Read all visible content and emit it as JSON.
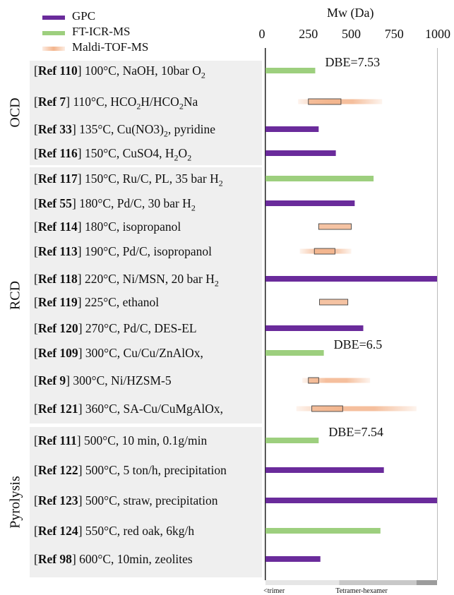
{
  "chart_data": {
    "type": "bar",
    "orientation": "horizontal",
    "axis_title": "Mw (Da)",
    "xlim": [
      0,
      1000
    ],
    "ticks": [
      "0",
      "250",
      "500",
      "750",
      "1000"
    ],
    "tick_values": [
      0,
      250,
      500,
      750,
      1000
    ],
    "legend": [
      {
        "name": "GPC",
        "color": "#6a2b9b",
        "kind": "bar"
      },
      {
        "name": "FT-ICR-MS",
        "color": "#9dcf7e",
        "kind": "bar"
      },
      {
        "name": "Maldi-TOF-MS",
        "color": "#f3b48c",
        "kind": "range"
      }
    ],
    "groups": [
      {
        "name": "OCD",
        "rows": [
          0,
          1,
          2,
          3
        ]
      },
      {
        "name": "RCD",
        "rows": [
          4,
          5,
          6,
          7,
          8,
          9,
          10,
          11,
          12,
          13
        ]
      },
      {
        "name": "Pyrolysis",
        "rows": [
          14,
          15,
          16,
          17,
          18
        ]
      }
    ],
    "rows": [
      {
        "ref": "Ref 110",
        "cond": "100°C, NaOH, 10bar O",
        "sub": "2",
        "tail": "",
        "method": "FT-ICR-MS",
        "value": 290,
        "annotation": "DBE=7.53"
      },
      {
        "ref": "Ref 7",
        "cond": "110°C, HCO",
        "sub": "2",
        "tail": "H/HCO",
        "sub2": "2",
        "tail2": "Na",
        "method": "Maldi-TOF-MS",
        "range": [
          190,
          680
        ],
        "box": [
          250,
          440
        ]
      },
      {
        "ref": "Ref 33",
        "cond": "135°C, Cu(NO3)",
        "sub": "2",
        "tail": ", pyridine",
        "method": "GPC",
        "value": 310
      },
      {
        "ref": "Ref 116",
        "cond": "150°C, CuSO4, H",
        "sub": "2",
        "tail": "O",
        "sub2": "2",
        "tail2": "",
        "method": "GPC",
        "value": 410
      },
      {
        "ref": "Ref 117",
        "cond": "150°C, Ru/C, PL, 35 bar H",
        "sub": "2",
        "tail": "",
        "method": "FT-ICR-MS",
        "value": 630
      },
      {
        "ref": "Ref 55",
        "cond": "  180°C, Pd/C, 30 bar H",
        "sub": "2",
        "tail": "",
        "method": "GPC",
        "value": 520
      },
      {
        "ref": "Ref 114",
        "cond": "180°C, isopropanol",
        "sub": "",
        "tail": "",
        "method": "Maldi-TOF-MS",
        "box": [
          310,
          500
        ]
      },
      {
        "ref": "Ref 113",
        "cond": "190°C, Pd/C, isopropanol",
        "sub": "",
        "tail": "",
        "method": "Maldi-TOF-MS",
        "range": [
          200,
          500
        ],
        "box": [
          285,
          405
        ]
      },
      {
        "ref": "Ref 118",
        "cond": "220°C, Ni/MSN, 20 bar H",
        "sub": "2",
        "tail": "",
        "method": "GPC",
        "value": 1000
      },
      {
        "ref": "Ref 119",
        "cond": "225°C, ethanol",
        "sub": "",
        "tail": "",
        "method": "Maldi-TOF-MS",
        "box": [
          315,
          480
        ]
      },
      {
        "ref": "Ref 120",
        "cond": "270°C, Pd/C, DES-EL",
        "sub": "",
        "tail": "",
        "method": "GPC",
        "value": 570
      },
      {
        "ref": "Ref 109",
        "cond": "300°C, Cu/Cu/ZnAlOx,",
        "sub": "",
        "tail": "",
        "method": "FT-ICR-MS",
        "value": 340,
        "annotation": "DBE=6.5"
      },
      {
        "ref": "Ref 9",
        "cond": "   300°C, Ni/HZSM-5",
        "sub": "",
        "tail": "",
        "method": "Maldi-TOF-MS",
        "range": [
          215,
          610
        ],
        "box": [
          250,
          310
        ]
      },
      {
        "ref": "Ref 121",
        "cond": "360°C, SA-Cu/CuMgAlOx,",
        "sub": "",
        "tail": "",
        "method": "Maldi-TOF-MS",
        "range": [
          180,
          880
        ],
        "box": [
          270,
          450
        ]
      },
      {
        "ref": "Ref 111",
        "cond": "500°C, 10 min, 0.1g/min",
        "sub": "",
        "tail": "",
        "method": "FT-ICR-MS",
        "value": 310,
        "annotation": "DBE=7.54"
      },
      {
        "ref": "Ref 122",
        "cond": "500°C, 5 ton/h, precipitation",
        "sub": "",
        "tail": "",
        "method": "GPC",
        "value": 690
      },
      {
        "ref": "Ref 123",
        "cond": "500°C, straw, precipitation",
        "sub": "",
        "tail": "",
        "method": "GPC",
        "value": 1000
      },
      {
        "ref": "Ref 124",
        "cond": "550°C, red oak, 6kg/h",
        "sub": "",
        "tail": "",
        "method": "FT-ICR-MS",
        "value": 670
      },
      {
        "ref": "Ref 98",
        "cond": "  600°C, 10min, zeolites",
        "sub": "",
        "tail": "",
        "method": "GPC",
        "value": 320
      }
    ],
    "range_labels": [
      "<trimer",
      "Tetramer-hexamer"
    ],
    "range_bands": [
      [
        0,
        430
      ],
      [
        430,
        880
      ],
      [
        880,
        1000
      ]
    ]
  }
}
